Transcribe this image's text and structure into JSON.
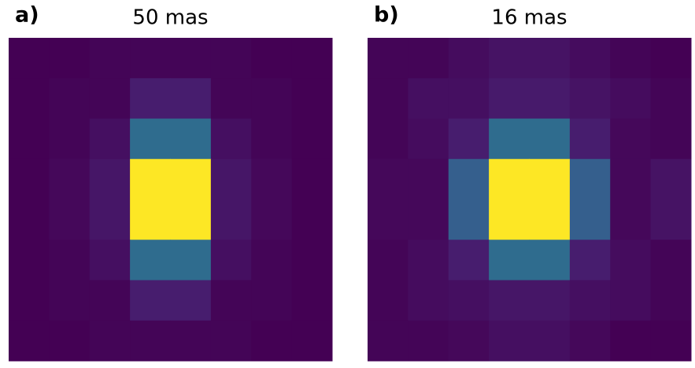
{
  "chart_data": [
    {
      "type": "heatmap",
      "panel_label": "a)",
      "title": "50 mas",
      "colormap": "viridis",
      "values": [
        [
          0.0,
          0.0,
          0.01,
          0.01,
          0.01,
          0.01,
          0.0,
          0.0
        ],
        [
          0.0,
          0.01,
          0.01,
          0.08,
          0.08,
          0.01,
          0.01,
          0.0
        ],
        [
          0.0,
          0.01,
          0.04,
          0.35,
          0.35,
          0.04,
          0.01,
          0.0
        ],
        [
          0.0,
          0.02,
          0.06,
          1.0,
          1.0,
          0.06,
          0.02,
          0.0
        ],
        [
          0.0,
          0.02,
          0.06,
          1.0,
          1.0,
          0.06,
          0.02,
          0.0
        ],
        [
          0.0,
          0.01,
          0.04,
          0.35,
          0.35,
          0.04,
          0.01,
          0.0
        ],
        [
          0.0,
          0.01,
          0.01,
          0.08,
          0.08,
          0.01,
          0.01,
          0.0
        ],
        [
          0.0,
          0.0,
          0.01,
          0.01,
          0.01,
          0.01,
          0.0,
          0.0
        ]
      ]
    },
    {
      "type": "heatmap",
      "panel_label": "b)",
      "title": "16 mas",
      "colormap": "viridis",
      "values": [
        [
          0.01,
          0.01,
          0.03,
          0.05,
          0.05,
          0.03,
          0.01,
          0.0
        ],
        [
          0.01,
          0.04,
          0.04,
          0.07,
          0.07,
          0.05,
          0.03,
          0.01
        ],
        [
          0.01,
          0.03,
          0.08,
          0.35,
          0.35,
          0.08,
          0.02,
          0.01
        ],
        [
          0.02,
          0.02,
          0.3,
          1.0,
          1.0,
          0.3,
          0.02,
          0.05
        ],
        [
          0.02,
          0.02,
          0.3,
          1.0,
          1.0,
          0.3,
          0.02,
          0.05
        ],
        [
          0.01,
          0.03,
          0.08,
          0.35,
          0.35,
          0.08,
          0.03,
          0.01
        ],
        [
          0.01,
          0.03,
          0.04,
          0.06,
          0.06,
          0.04,
          0.03,
          0.01
        ],
        [
          0.01,
          0.01,
          0.02,
          0.04,
          0.04,
          0.02,
          0.0,
          0.0
        ]
      ]
    }
  ]
}
